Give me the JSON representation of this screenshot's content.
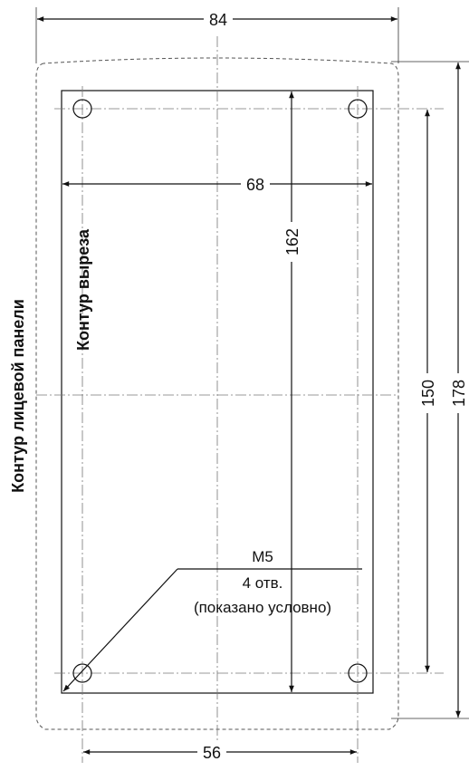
{
  "dimensions": {
    "panel_width": "84",
    "cutout_width": "68",
    "hole_spacing_horizontal": "56",
    "hole_spacing_vertical": "150",
    "cutout_height": "162",
    "panel_height": "178"
  },
  "labels": {
    "panel_outline": "Контур лицевой панели",
    "cutout_outline": "Контур выреза"
  },
  "note": {
    "thread": "M5",
    "holes": "4 отв.",
    "remark": "(показано условно)"
  }
}
